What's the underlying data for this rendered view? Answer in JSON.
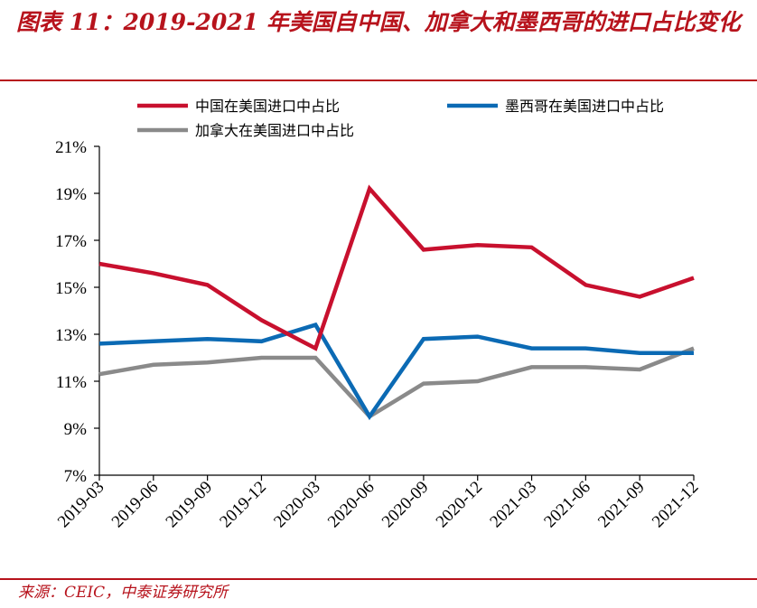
{
  "title": "图表 11：2019-2021 年美国自中国、加拿大和墨西哥的进口占比变化",
  "source": "来源：CEIC，中泰证券研究所",
  "chart_data": {
    "type": "line",
    "title": "",
    "xlabel": "",
    "ylabel": "",
    "x": [
      "2019-03",
      "2019-06",
      "2019-09",
      "2019-12",
      "2020-03",
      "2020-06",
      "2020-09",
      "2020-12",
      "2021-03",
      "2021-06",
      "2021-09",
      "2021-12"
    ],
    "ylim": [
      7,
      21
    ],
    "yticks": [
      "7%",
      "9%",
      "11%",
      "13%",
      "15%",
      "17%",
      "19%",
      "21%"
    ],
    "grid": false,
    "legend_position": "top",
    "series": [
      {
        "name": "中国在美国进口中占比",
        "color": "#c8102e",
        "values": [
          16.0,
          15.6,
          15.1,
          13.6,
          12.4,
          19.2,
          16.6,
          16.8,
          16.7,
          15.1,
          14.6,
          15.4
        ]
      },
      {
        "name": "墨西哥在美国进口中占比",
        "color": "#0b6ab4",
        "values": [
          12.6,
          12.7,
          12.8,
          12.7,
          13.4,
          9.5,
          12.8,
          12.9,
          12.4,
          12.4,
          12.2,
          12.2
        ]
      },
      {
        "name": "加拿大在美国进口中占比",
        "color": "#8a8a8a",
        "values": [
          11.3,
          11.7,
          11.8,
          12.0,
          12.0,
          9.5,
          10.9,
          11.0,
          11.6,
          11.6,
          11.5,
          12.4
        ]
      }
    ]
  }
}
